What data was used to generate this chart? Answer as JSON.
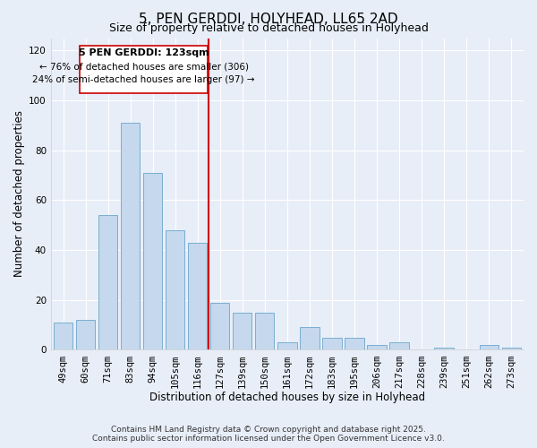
{
  "title": "5, PEN GERDDI, HOLYHEAD, LL65 2AD",
  "subtitle": "Size of property relative to detached houses in Holyhead",
  "xlabel": "Distribution of detached houses by size in Holyhead",
  "ylabel": "Number of detached properties",
  "bar_labels": [
    "49sqm",
    "60sqm",
    "71sqm",
    "83sqm",
    "94sqm",
    "105sqm",
    "116sqm",
    "127sqm",
    "139sqm",
    "150sqm",
    "161sqm",
    "172sqm",
    "183sqm",
    "195sqm",
    "206sqm",
    "217sqm",
    "228sqm",
    "239sqm",
    "251sqm",
    "262sqm",
    "273sqm"
  ],
  "bar_values": [
    11,
    12,
    54,
    91,
    71,
    48,
    43,
    19,
    15,
    15,
    3,
    9,
    5,
    5,
    2,
    3,
    0,
    1,
    0,
    2,
    1
  ],
  "bar_color": "#c5d8ed",
  "bar_edge_color": "#7aaed0",
  "vline_x": 6.5,
  "vline_color": "#cc0000",
  "annotation_title": "5 PEN GERDDI: 123sqm",
  "annotation_line1": "← 76% of detached houses are smaller (306)",
  "annotation_line2": "24% of semi-detached houses are larger (97) →",
  "annotation_box_facecolor": "#ffffff",
  "annotation_box_edgecolor": "#cc0000",
  "ylim": [
    0,
    125
  ],
  "yticks": [
    0,
    20,
    40,
    60,
    80,
    100,
    120
  ],
  "footer1": "Contains HM Land Registry data © Crown copyright and database right 2025.",
  "footer2": "Contains public sector information licensed under the Open Government Licence v3.0.",
  "background_color": "#e8eef8",
  "grid_color": "#ffffff",
  "title_fontsize": 11,
  "subtitle_fontsize": 9,
  "axis_label_fontsize": 8.5,
  "tick_fontsize": 7.5,
  "footer_fontsize": 6.5,
  "annotation_title_fontsize": 8,
  "annotation_body_fontsize": 7.5
}
